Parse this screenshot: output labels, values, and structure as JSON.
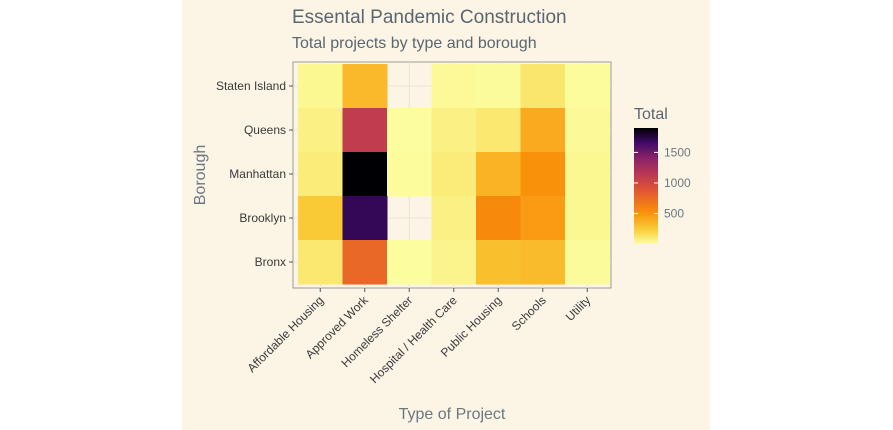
{
  "chart_data": {
    "type": "heatmap",
    "title": "Essental Pandemic Construction",
    "subtitle": "Total projects by type and borough",
    "xlabel": "Type of Project",
    "ylabel": "Borough",
    "x_categories": [
      "Affordable Housing",
      "Approved Work",
      "Homeless Shelter",
      "Hospital / Health Care",
      "Public Housing",
      "Schools",
      "Utility"
    ],
    "y_categories": [
      "Staten Island",
      "Queens",
      "Manhattan",
      "Brooklyn",
      "Bronx"
    ],
    "values": [
      [
        40,
        330,
        null,
        30,
        20,
        120,
        15
      ],
      [
        70,
        1100,
        10,
        70,
        110,
        400,
        25
      ],
      [
        90,
        1900,
        15,
        90,
        360,
        520,
        40
      ],
      [
        250,
        1700,
        null,
        70,
        560,
        470,
        40
      ],
      [
        110,
        770,
        10,
        50,
        300,
        320,
        20
      ]
    ],
    "grid": true,
    "legend": {
      "title": "Total",
      "ticks": [
        500,
        1000,
        1500
      ],
      "range": [
        0,
        1900
      ],
      "placement": "right"
    }
  }
}
